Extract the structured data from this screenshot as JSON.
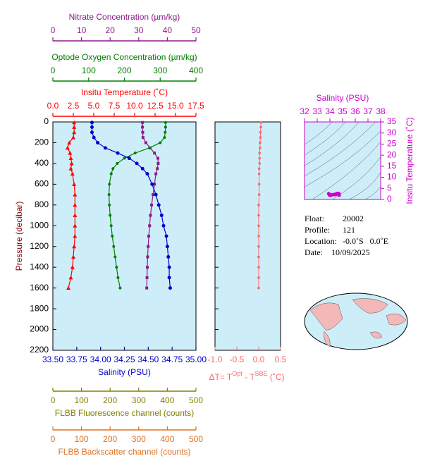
{
  "chart_data": [
    {
      "type": "profile",
      "ylabel": "Pressure (decibar)",
      "ylim": [
        0,
        2200
      ],
      "yticks": [
        0,
        200,
        400,
        600,
        800,
        1000,
        1200,
        1400,
        1600,
        1800,
        2000,
        2200
      ],
      "pressure": [
        5,
        50,
        100,
        150,
        200,
        250,
        300,
        350,
        400,
        450,
        500,
        600,
        700,
        800,
        900,
        1000,
        1100,
        1200,
        1300,
        1400,
        1500,
        1600
      ],
      "axes": [
        {
          "label": "Nitrate Concentration (µm/kg)",
          "color": "#8b1a89",
          "xlim": [
            0,
            50
          ],
          "xticks": [
            0,
            10,
            20,
            30,
            40,
            50
          ],
          "marker": "square",
          "values": [
            31.3,
            31.3,
            31.4,
            31.5,
            32.5,
            34,
            35.5,
            36.7,
            36.8,
            36.5,
            36.0,
            35.5,
            35.0,
            34.5,
            34.1,
            33.8,
            33.5,
            33.3,
            33.1,
            33.0,
            32.9,
            32.8
          ]
        },
        {
          "label": "Optode Oxygen Concentration (µm/kg)",
          "color": "#008000",
          "xlim": [
            0,
            400
          ],
          "xticks": [
            0,
            100,
            200,
            300,
            400
          ],
          "marker": "circle-small",
          "values": [
            315,
            315,
            314,
            312,
            300,
            270,
            230,
            200,
            180,
            168,
            163,
            158,
            157,
            158,
            160,
            163,
            166,
            170,
            174,
            178,
            182,
            188
          ]
        },
        {
          "label": "Insitu Temperature (˚C)",
          "color": "#ff0000",
          "xlim": [
            0,
            17.5
          ],
          "xticks": [
            {
              "value": 0,
              "label": "0.0"
            },
            2.5,
            {
              "value": 5,
              "label": "5.0"
            },
            7.5,
            {
              "value": 10,
              "label": "10.0"
            },
            12.5,
            {
              "value": 15,
              "label": "15.0"
            },
            17.5
          ],
          "marker": "triangle",
          "values": [
            2.6,
            2.6,
            2.6,
            2.5,
            2.0,
            1.8,
            2.1,
            2.2,
            2.3,
            2.2,
            2.4,
            2.6,
            2.7,
            2.7,
            2.7,
            2.7,
            2.7,
            2.6,
            2.5,
            2.4,
            2.2,
            1.9
          ]
        },
        {
          "label": "Salinity (PSU)",
          "color": "#0000cc",
          "xlim": [
            33.5,
            35
          ],
          "xticks": [
            {
              "value": 33.5,
              "label": "33.50"
            },
            33.75,
            {
              "value": 34,
              "label": "34.00"
            },
            34.25,
            {
              "value": 34.5,
              "label": "34.50"
            },
            34.75,
            {
              "value": 35,
              "label": "35.00"
            }
          ],
          "marker": "circle",
          "values": [
            33.91,
            33.91,
            33.91,
            33.93,
            33.97,
            34.05,
            34.18,
            34.3,
            34.38,
            34.44,
            34.49,
            34.54,
            34.58,
            34.61,
            34.64,
            34.66,
            34.69,
            34.7,
            34.71,
            34.72,
            34.72,
            34.73
          ]
        },
        {
          "label": "FLBB Fluorescence channel (counts)",
          "color": "#808000",
          "xlim": [
            0,
            500
          ],
          "xticks": [
            0,
            100,
            200,
            300,
            400,
            500
          ]
        },
        {
          "label": "FLBB Backscatter channel (counts)",
          "color": "#e07020",
          "xlim": [
            0,
            500
          ],
          "xticks": [
            0,
            100,
            200,
            300,
            400,
            500
          ]
        }
      ]
    },
    {
      "type": "difference",
      "xlabel": [
        "ΔT= T",
        "Opt",
        " - T",
        "SBE",
        " (˚C)"
      ],
      "color": "#ff6666",
      "xlim": [
        -1,
        0.5
      ],
      "xticks": [
        {
          "value": -1,
          "label": "-1.0"
        },
        -0.5,
        {
          "value": 0,
          "label": "0.0"
        },
        0.5
      ],
      "values": [
        0.05,
        0.05,
        0.04,
        0.04,
        0.03,
        0.03,
        0.02,
        0.02,
        0.02,
        0.01,
        0.01,
        0.01,
        0.01,
        0,
        0,
        0,
        0,
        0,
        0,
        0,
        0,
        0
      ]
    },
    {
      "type": "ts",
      "title": "Salinity (PSU)",
      "ylabel": "Insitu Temperature (˚C)",
      "color": "#cc00cc",
      "xlim": [
        32,
        38
      ],
      "xticks": [
        32,
        33,
        34,
        35,
        36,
        37,
        38
      ],
      "ylim": [
        0,
        35
      ],
      "yticks": [
        0,
        5,
        10,
        15,
        20,
        25,
        30,
        35
      ]
    }
  ],
  "info": {
    "float": [
      "Float:",
      "20002"
    ],
    "profile": [
      "Profile:",
      "121"
    ],
    "location": [
      "Location:",
      "-0.0˚S   0.0˚E"
    ],
    "date": [
      "Date:",
      "10/09/2025"
    ]
  }
}
